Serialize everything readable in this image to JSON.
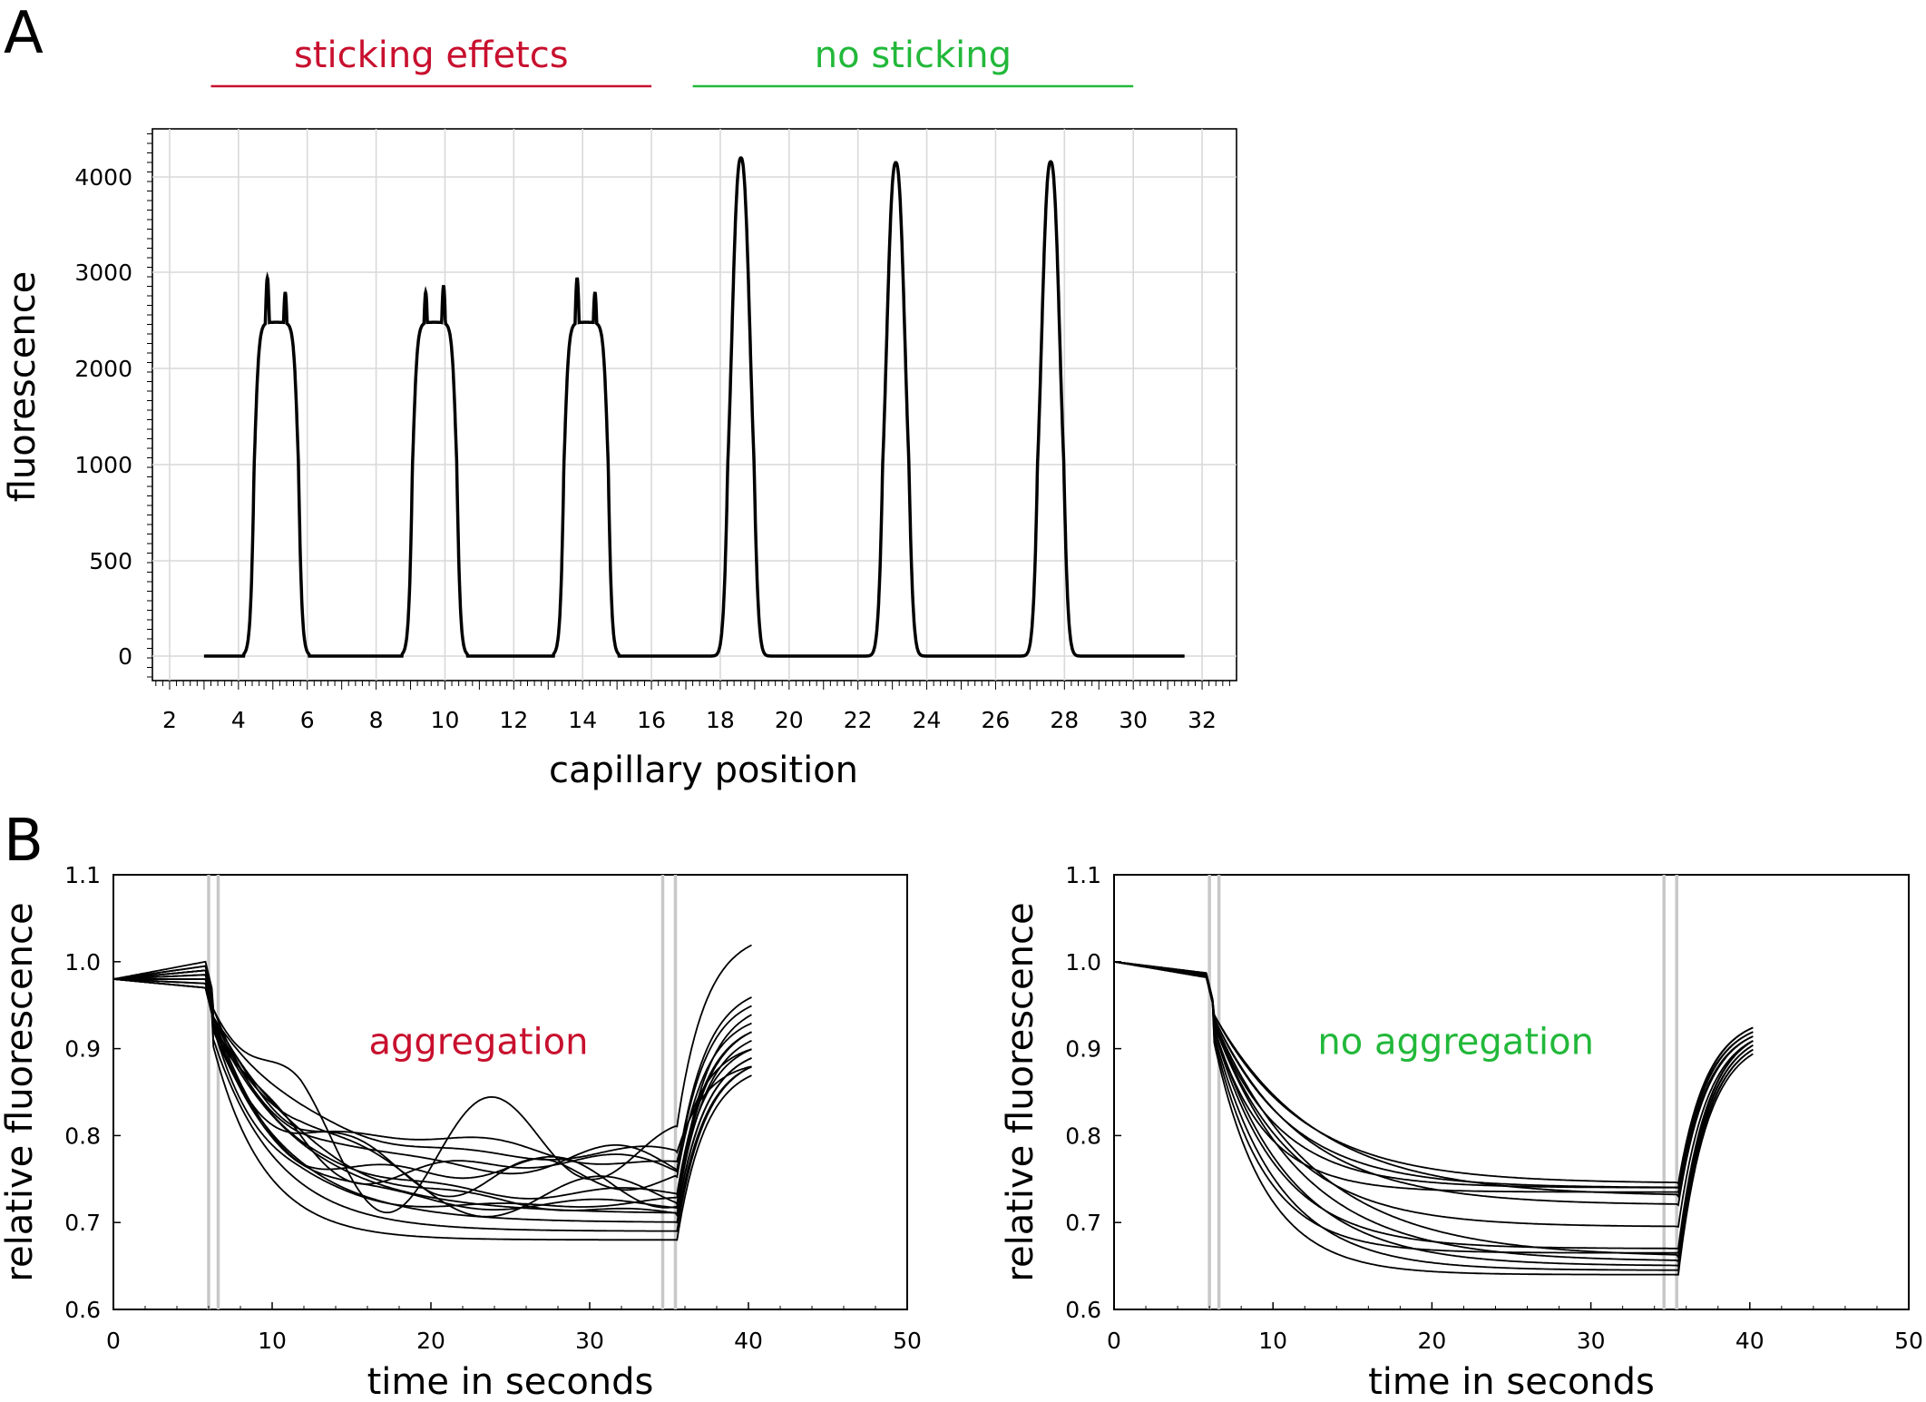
{
  "figure": {
    "panel_a_letter": "A",
    "panel_b_letter": "B"
  },
  "colors": {
    "red": "#c8102e",
    "green": "#22b83a",
    "line": "#000000",
    "grid": "#d9d9d9",
    "marker": "#c8c8c8"
  },
  "chart_data": [
    {
      "type": "line",
      "xlabel": "capillary position",
      "ylabel": "fluorescence",
      "xlim": [
        1.5,
        33
      ],
      "xticks": [
        2,
        4,
        6,
        8,
        10,
        12,
        14,
        16,
        18,
        20,
        22,
        24,
        26,
        28,
        30,
        32
      ],
      "yticks": [
        0,
        500,
        1000,
        2000,
        3000,
        4000
      ],
      "ytick_labels": [
        "0",
        "500",
        "1000",
        "2000",
        "3000",
        "4000"
      ],
      "grid": true,
      "annotations": [
        {
          "text": "sticking effetcs",
          "x_start": 3.2,
          "x_end": 16,
          "color": "#c8102e"
        },
        {
          "text": "no sticking",
          "x_start": 17.2,
          "x_end": 30,
          "color": "#22b83a"
        }
      ],
      "x_range": [
        3,
        31.5
      ],
      "peaks": [
        {
          "center": 5.1,
          "shape": "double",
          "heights": [
            2950,
            2800
          ],
          "dip": 2480
        },
        {
          "center": 9.7,
          "shape": "double",
          "heights": [
            2800,
            2870
          ],
          "dip": 2480
        },
        {
          "center": 14.1,
          "shape": "double",
          "heights": [
            2950,
            2800
          ],
          "dip": 2480
        },
        {
          "center": 18.6,
          "shape": "single",
          "heights": [
            4200
          ]
        },
        {
          "center": 23.1,
          "shape": "single",
          "heights": [
            4150
          ]
        },
        {
          "center": 27.6,
          "shape": "single",
          "heights": [
            4160
          ]
        }
      ]
    },
    {
      "type": "line",
      "xlabel": "time in seconds",
      "ylabel": "relative fluorescence",
      "xlim": [
        0,
        50
      ],
      "ylim": [
        0.6,
        1.1
      ],
      "xticks": [
        0,
        10,
        20,
        30,
        40,
        50
      ],
      "yticks": [
        0.6,
        0.7,
        0.8,
        0.9,
        1.0,
        1.1
      ],
      "ytick_labels": [
        "0.6",
        "0.7",
        "0.8",
        "0.9",
        "1.0",
        "1.1"
      ],
      "annotation": {
        "text": "aggregation",
        "x": 23,
        "y": 0.97,
        "color": "#c8102e"
      },
      "markers": [
        6.0,
        6.6,
        34.6,
        35.4
      ],
      "series_params": {
        "laser_on": 5.8,
        "laser_off": 35.5,
        "end": 40.3,
        "plateaus": [
          0.68,
          0.69,
          0.7,
          0.71,
          0.71,
          0.72,
          0.72,
          0.73,
          0.73,
          0.74,
          0.75,
          0.76,
          0.76,
          0.77,
          0.77,
          0.78
        ],
        "recovery_end": [
          0.87,
          0.88,
          0.88,
          0.89,
          0.89,
          0.9,
          0.91,
          0.92,
          0.92,
          0.93,
          0.94,
          0.95,
          0.96,
          1.02,
          0.88,
          0.9
        ],
        "pre_start": 0.98,
        "pre_end": [
          0.97,
          0.97,
          0.975,
          0.98,
          0.985,
          0.99,
          0.995,
          1.0,
          0.975,
          0.98,
          0.99,
          0.97,
          0.985,
          0.995,
          0.98,
          0.99
        ],
        "noise": [
          0.0,
          0.0,
          0.0,
          0.0,
          0.005,
          0.01,
          0.015,
          0.02,
          0.03,
          0.02,
          0.025,
          0.03,
          0.04,
          0.06,
          0.015,
          0.02
        ]
      }
    },
    {
      "type": "line",
      "xlabel": "time in seconds",
      "ylabel": "relative fluorescence",
      "xlim": [
        0,
        50
      ],
      "ylim": [
        0.6,
        1.1
      ],
      "xticks": [
        0,
        10,
        20,
        30,
        40,
        50
      ],
      "yticks": [
        0.6,
        0.7,
        0.8,
        0.9,
        1.0,
        1.1
      ],
      "ytick_labels": [
        "0.6",
        "0.7",
        "0.8",
        "0.9",
        "1.0",
        "1.1"
      ],
      "annotation": {
        "text": "no aggregation",
        "x": 21.5,
        "y": 0.97,
        "color": "#22b83a"
      },
      "markers": [
        6.0,
        6.6,
        34.6,
        35.4
      ],
      "series_params": {
        "laser_on": 5.8,
        "laser_off": 35.5,
        "end": 40.3,
        "plateaus": [
          0.64,
          0.645,
          0.65,
          0.655,
          0.66,
          0.665,
          0.67,
          0.695,
          0.72,
          0.73,
          0.735,
          0.74,
          0.74,
          0.745
        ],
        "recovery_end": [
          0.895,
          0.9,
          0.9,
          0.905,
          0.905,
          0.91,
          0.91,
          0.91,
          0.915,
          0.915,
          0.92,
          0.92,
          0.925,
          0.925
        ],
        "pre_start": 1.0,
        "pre_end": [
          0.982,
          0.982,
          0.983,
          0.983,
          0.984,
          0.984,
          0.985,
          0.985,
          0.985,
          0.986,
          0.986,
          0.986,
          0.987,
          0.987
        ],
        "noise": [
          0,
          0,
          0,
          0,
          0,
          0,
          0,
          0,
          0,
          0,
          0,
          0,
          0,
          0
        ]
      }
    }
  ]
}
